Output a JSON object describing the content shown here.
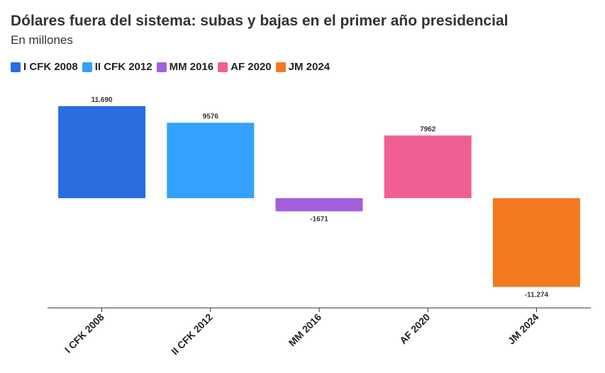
{
  "title": "Dólares fuera del sistema: subas y bajas en el primer año presidencial",
  "subtitle": "En millones",
  "legend": [
    {
      "label": "I CFK 2008",
      "color": "#2a6de1"
    },
    {
      "label": "II CFK 2012",
      "color": "#33a1fd"
    },
    {
      "label": "MM 2016",
      "color": "#a45fdd"
    },
    {
      "label": "AF 2020",
      "color": "#f05f94"
    },
    {
      "label": "JM 2024",
      "color": "#f57a1f"
    }
  ],
  "chart_data": {
    "type": "bar",
    "title": "Dólares fuera del sistema: subas y bajas en el primer año presidencial",
    "subtitle": "En millones",
    "xlabel": "",
    "ylabel": "",
    "categories": [
      "I CFK 2008",
      "II CFK 2012",
      "MM 2016",
      "AF 2020",
      "JM 2024"
    ],
    "values": [
      11690,
      9576,
      -1671,
      7962,
      -11274
    ],
    "data_labels": [
      "11.690",
      "9576",
      "-1671",
      "7962",
      "-11.274"
    ],
    "colors": [
      "#2a6de1",
      "#33a1fd",
      "#a45fdd",
      "#f05f94",
      "#f57a1f"
    ],
    "ylim": [
      -13500,
      12000
    ],
    "grid": false,
    "legend_position": "top-left"
  }
}
